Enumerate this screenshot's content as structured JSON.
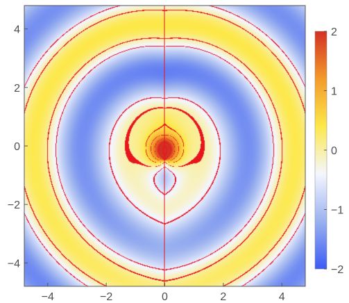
{
  "chart_data": {
    "type": "heatmap",
    "title": "",
    "xlabel": "",
    "ylabel": "",
    "xlim": [
      -4.8,
      4.8
    ],
    "ylim": [
      -4.8,
      4.8
    ],
    "x_ticks": [
      {
        "value": -4,
        "label": "−4"
      },
      {
        "value": -2,
        "label": "−2"
      },
      {
        "value": 0,
        "label": "0"
      },
      {
        "value": 2,
        "label": "2"
      },
      {
        "value": 4,
        "label": "4"
      }
    ],
    "y_ticks": [
      {
        "value": 4,
        "label": "4"
      },
      {
        "value": 2,
        "label": "2"
      },
      {
        "value": 0,
        "label": "0"
      },
      {
        "value": -2,
        "label": "−2"
      },
      {
        "value": -4,
        "label": "−4"
      }
    ],
    "colorbar": {
      "range": [
        -2,
        2
      ],
      "ticks": [
        {
          "value": 2,
          "label": "2"
        },
        {
          "value": 1,
          "label": "1"
        },
        {
          "value": 0,
          "label": "0"
        },
        {
          "value": -1,
          "label": "−1"
        },
        {
          "value": -2,
          "label": "−2"
        }
      ],
      "colors": [
        "#3b5bf5",
        "#9ab1ef",
        "#f4f6ff",
        "#fde84a",
        "#f39b2a",
        "#d32f23"
      ]
    },
    "contour_color": "#e8141e",
    "grid": false
  }
}
